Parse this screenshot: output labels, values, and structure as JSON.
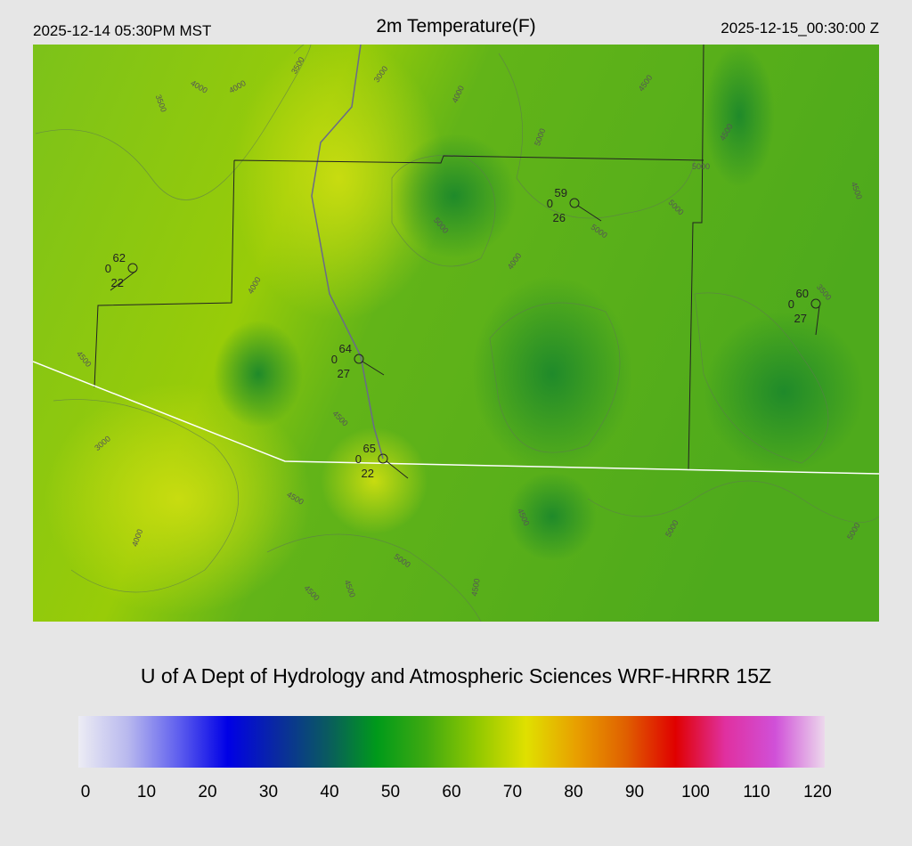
{
  "header": {
    "left": "2025-12-14 05:30PM MST",
    "title": "2m Temperature(F)",
    "right": "2025-12-15_00:30:00 Z"
  },
  "stations": [
    {
      "temp": 62,
      "wind": 0,
      "dewpoint": 22
    },
    {
      "temp": 59,
      "wind": 0,
      "dewpoint": 26
    },
    {
      "temp": 60,
      "wind": 0,
      "dewpoint": 27
    },
    {
      "temp": 64,
      "wind": 0,
      "dewpoint": 27
    },
    {
      "temp": 65,
      "wind": 0,
      "dewpoint": 22
    }
  ],
  "contour_labels": [
    4000,
    4000,
    3500,
    3500,
    3000,
    4000,
    4500,
    5000,
    5000,
    5000,
    5000,
    5000,
    4500,
    4500,
    4000,
    3500,
    4000,
    4500,
    3000,
    4500,
    4500,
    4000,
    5000,
    4500,
    4500,
    4500,
    4500,
    5000,
    5000
  ],
  "credit": "U of A Dept of Hydrology and Atmospheric Sciences WRF-HRRR 15Z",
  "colorbar": {
    "ticks": [
      0,
      10,
      20,
      30,
      40,
      50,
      60,
      70,
      80,
      90,
      100,
      110,
      120
    ],
    "colors": [
      "#ececf4",
      "#b8b8ee",
      "#6060ee",
      "#0000e6",
      "#0a2aa0",
      "#0a5a60",
      "#009a1a",
      "#40aa10",
      "#90c800",
      "#e0e000",
      "#e8a000",
      "#e06000",
      "#e00000",
      "#e030a0",
      "#d050d8",
      "#ecd8ec"
    ]
  }
}
